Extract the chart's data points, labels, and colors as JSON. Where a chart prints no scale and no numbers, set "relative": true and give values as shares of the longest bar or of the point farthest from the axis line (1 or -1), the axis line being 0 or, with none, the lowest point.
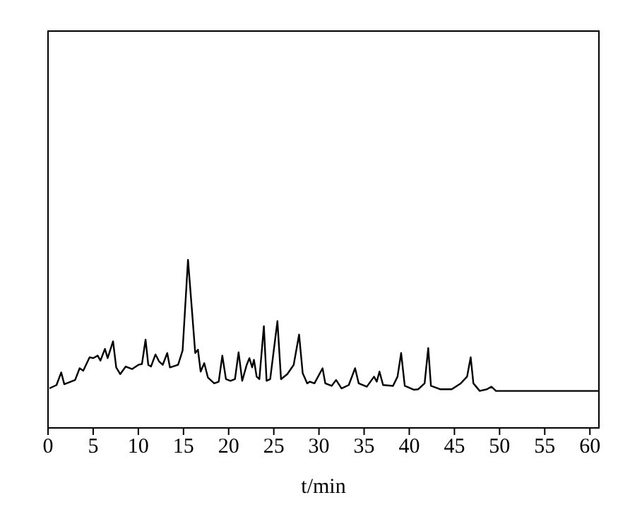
{
  "chart_data": {
    "type": "line",
    "relative": true,
    "xlabel": "t/min",
    "xlim": [
      0,
      61
    ],
    "xticks": [
      0,
      5,
      10,
      15,
      20,
      25,
      30,
      35,
      40,
      45,
      50,
      55,
      60
    ],
    "tick_labels": "x",
    "grid": false,
    "marker": "none",
    "line_style": "solid",
    "series": [
      {
        "color": "#000000",
        "x": [
          0.16,
          0.94,
          1.46,
          1.8,
          3.0,
          3.5,
          3.9,
          4.6,
          5.0,
          5.5,
          5.8,
          6.3,
          6.6,
          7.2,
          7.55,
          8.0,
          8.6,
          9.3,
          10.0,
          10.4,
          10.8,
          11.1,
          11.4,
          11.9,
          12.3,
          12.7,
          13.2,
          13.5,
          14.4,
          14.9,
          15.5,
          15.9,
          16.3,
          16.6,
          16.9,
          17.3,
          17.7,
          18.4,
          18.9,
          19.3,
          19.7,
          20.2,
          20.7,
          21.1,
          21.5,
          22.0,
          22.3,
          22.6,
          22.8,
          23.1,
          23.4,
          23.9,
          24.2,
          24.6,
          25.4,
          25.8,
          26.5,
          27.2,
          27.8,
          28.2,
          28.7,
          29.0,
          29.5,
          30.4,
          30.7,
          31.4,
          31.9,
          32.5,
          33.3,
          34.0,
          34.4,
          35.3,
          36.1,
          36.4,
          36.7,
          37.1,
          38.2,
          38.7,
          39.1,
          39.5,
          40.5,
          41.0,
          41.7,
          42.1,
          42.4,
          43.4,
          44.7,
          45.7,
          46.4,
          46.8,
          47.1,
          47.8,
          48.6,
          49.1,
          49.6,
          61
        ],
        "values": [
          0.235,
          0.255,
          0.33,
          0.26,
          0.285,
          0.355,
          0.34,
          0.42,
          0.415,
          0.43,
          0.4,
          0.47,
          0.415,
          0.515,
          0.36,
          0.32,
          0.365,
          0.35,
          0.375,
          0.38,
          0.525,
          0.375,
          0.365,
          0.437,
          0.395,
          0.375,
          0.445,
          0.36,
          0.375,
          0.46,
          1.0,
          0.725,
          0.445,
          0.465,
          0.335,
          0.385,
          0.3,
          0.265,
          0.275,
          0.43,
          0.29,
          0.28,
          0.29,
          0.45,
          0.28,
          0.375,
          0.415,
          0.36,
          0.405,
          0.305,
          0.29,
          0.605,
          0.28,
          0.29,
          0.635,
          0.29,
          0.32,
          0.375,
          0.555,
          0.325,
          0.265,
          0.275,
          0.265,
          0.355,
          0.265,
          0.25,
          0.285,
          0.235,
          0.255,
          0.355,
          0.265,
          0.245,
          0.305,
          0.275,
          0.335,
          0.255,
          0.25,
          0.305,
          0.445,
          0.25,
          0.227,
          0.23,
          0.265,
          0.475,
          0.25,
          0.23,
          0.23,
          0.265,
          0.305,
          0.42,
          0.265,
          0.22,
          0.23,
          0.245,
          0.22,
          0.22
        ]
      }
    ]
  }
}
